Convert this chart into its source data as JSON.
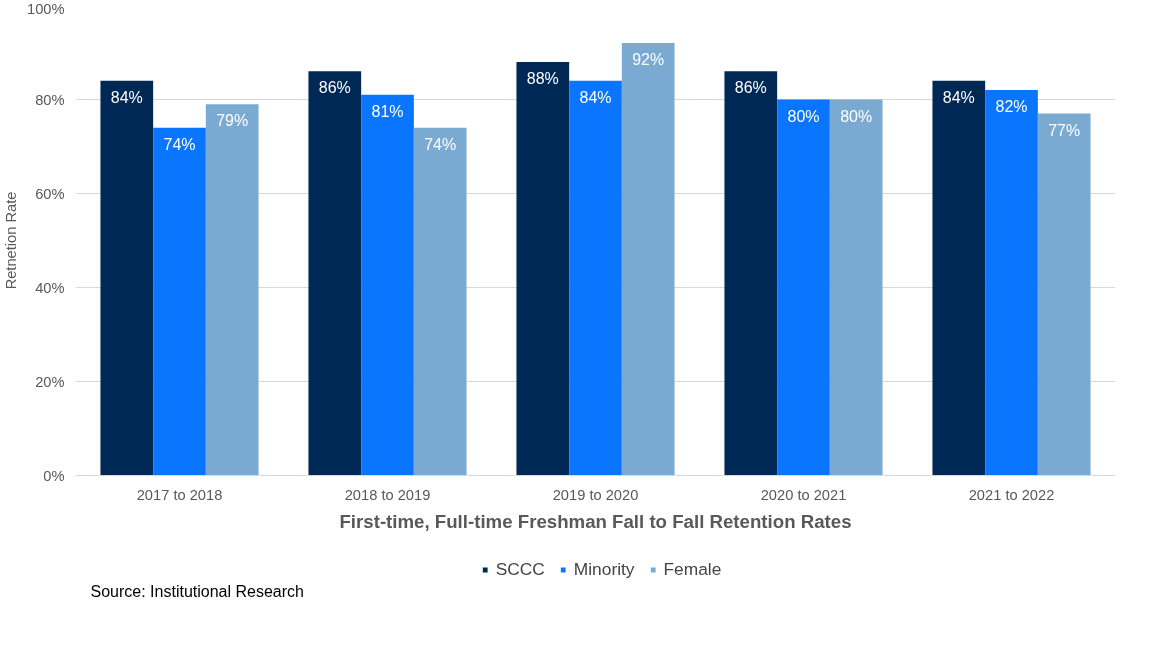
{
  "chart_data": {
    "type": "bar",
    "xlabel": "First-time, Full-time Freshman Fall to Fall Retention Rates",
    "ylabel": "Retnetion Rate",
    "categories": [
      "2017 to 2018",
      "2018 to 2019",
      "2019 to 2020",
      "2020 to 2021",
      "2021 to 2022"
    ],
    "series": [
      {
        "name": "SCCC",
        "color": "#002855",
        "values": [
          84,
          86,
          88,
          86,
          84
        ]
      },
      {
        "name": "Minority",
        "color": "#0a75ff",
        "values": [
          74,
          81,
          84,
          80,
          82
        ]
      },
      {
        "name": "Female",
        "color": "#7aaad2",
        "values": [
          79,
          74,
          92,
          80,
          77
        ]
      }
    ],
    "ylim": [
      0,
      100
    ],
    "yticks": [
      {
        "value": 0,
        "label": "0%"
      },
      {
        "value": 20,
        "label": "20%"
      },
      {
        "value": 40,
        "label": "40%"
      },
      {
        "value": 60,
        "label": "60%"
      },
      {
        "value": 80,
        "label": "80%"
      },
      {
        "value": 100,
        "label": "100%"
      }
    ],
    "value_labels": [
      [
        "84%",
        "86%",
        "88%",
        "86%",
        "84%"
      ],
      [
        "74%",
        "81%",
        "84%",
        "80%",
        "82%"
      ],
      [
        "79%",
        "74%",
        "92%",
        "80%",
        "77%"
      ]
    ],
    "grid": "y",
    "legend": "bottom",
    "annotations": [
      "Source: Institutional Research"
    ]
  }
}
